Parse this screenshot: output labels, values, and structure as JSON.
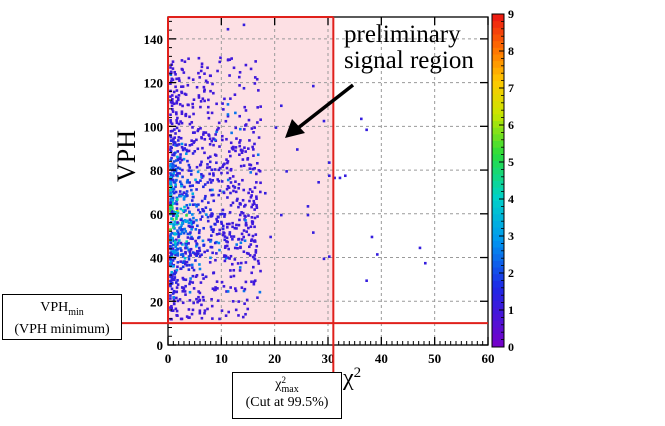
{
  "chart_data": {
    "type": "heatmap",
    "title": "",
    "xlabel": "χ²",
    "ylabel": "VPH",
    "xlim": [
      0,
      60
    ],
    "ylim": [
      0,
      150
    ],
    "xticks": [
      0,
      10,
      20,
      30,
      40,
      50,
      60
    ],
    "yticks": [
      0,
      20,
      40,
      60,
      80,
      100,
      120,
      140
    ],
    "grid": true,
    "colorbar": {
      "min": 0,
      "max": 9,
      "ticks": [
        0,
        1,
        2,
        3,
        4,
        5,
        6,
        7,
        8,
        9
      ]
    },
    "cuts": {
      "chi2_max": 31,
      "vph_min": 10
    },
    "annotation": {
      "line1": "preliminary",
      "line2": "signal region"
    },
    "vph_min_label": {
      "main": "VPH",
      "sub": "min",
      "desc": "(VPH minimum)"
    },
    "chi2_max_label": {
      "main": "χ",
      "sup": "2",
      "sub": "max",
      "desc": "(Cut at 99.5%)"
    },
    "sparse_points": [
      [
        36,
        104
      ],
      [
        37,
        99
      ],
      [
        38,
        50
      ],
      [
        39,
        42
      ],
      [
        47,
        45
      ],
      [
        48,
        38
      ],
      [
        37,
        30
      ],
      [
        32,
        77
      ],
      [
        33,
        78
      ],
      [
        30,
        84
      ],
      [
        30,
        78
      ],
      [
        31,
        77
      ],
      [
        30,
        41
      ],
      [
        29,
        40
      ],
      [
        26,
        64
      ],
      [
        26,
        60
      ],
      [
        28,
        75
      ],
      [
        27,
        52
      ],
      [
        21,
        110
      ],
      [
        27,
        119
      ],
      [
        29,
        103
      ],
      [
        20,
        100
      ],
      [
        24,
        90
      ],
      [
        22,
        80
      ],
      [
        18,
        70
      ],
      [
        21,
        60
      ],
      [
        19,
        50
      ],
      [
        16,
        40
      ],
      [
        14,
        118
      ],
      [
        14,
        147
      ],
      [
        11,
        145
      ]
    ]
  },
  "colors": {
    "signal_region": "#fde0e4",
    "cut_line": "#e0201b",
    "grid": "#9a9a9a"
  }
}
